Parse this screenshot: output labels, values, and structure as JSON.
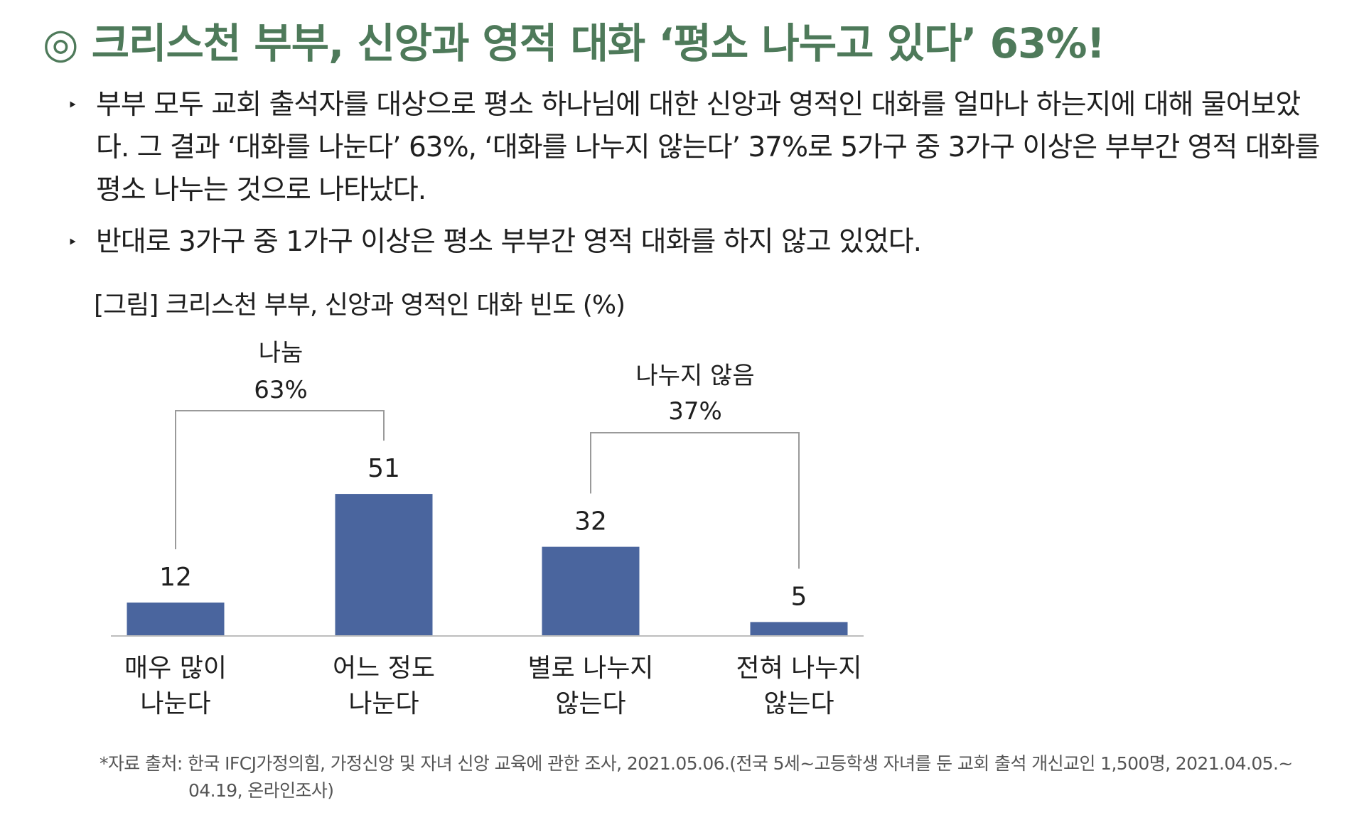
{
  "title": "◎ 크리스천 부부, 신앙과 영적 대화 ‘평소 나누고 있다’ 63%!",
  "bullets": [
    "부부 모두 교회 출석자를 대상으로 평소 하나님에 대한 신앙과 영적인 대화를 얼마나 하는지에 대해 물어보았다. 그 결과 ‘대화를 나눈다’ 63%, ‘대화를 나누지 않는다’ 37%로 5가구 중 3가구 이상은 부부간 영적 대화를 평소 나누는 것으로 나타났다.",
    "반대로 3가구 중 1가구 이상은 평소 부부간 영적 대화를 하지 않고 있었다."
  ],
  "bullet_marker": "‣",
  "caption": "[그림] 크리스천 부부, 신앙과 영적인 대화 빈도 (%)",
  "chart_data": {
    "type": "bar",
    "categories": [
      [
        "매우 많이",
        "나눈다"
      ],
      [
        "어느 정도",
        "나눈다"
      ],
      [
        "별로 나누지",
        "않는다"
      ],
      [
        "전혀 나누지",
        "않는다"
      ]
    ],
    "values": [
      12,
      51,
      32,
      5
    ],
    "bar_color": "#4a659e",
    "ylim": [
      0,
      60
    ],
    "groups": [
      {
        "label": "나눔",
        "value": "63%",
        "from": 0,
        "to": 1
      },
      {
        "label": "나누지 않음",
        "value": "37%",
        "from": 2,
        "to": 3
      }
    ]
  },
  "source": {
    "line1": "*자료 출처: 한국 IFCJ가정의힘, 가정신앙 및 자녀 신앙 교육에 관한 조사, 2021.05.06.(전국 5세~고등학생 자녀를 둔 교회 출석 개신교인 1,500명, 2021.04.05.~",
    "line2": "04.19, 온라인조사)"
  }
}
